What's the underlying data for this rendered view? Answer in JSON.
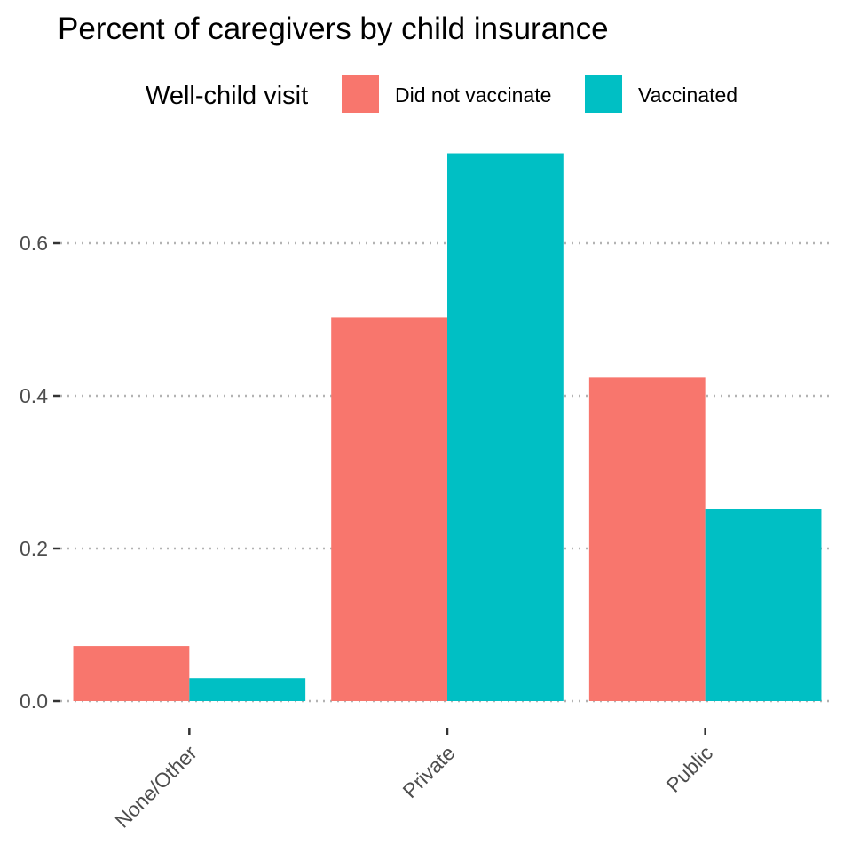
{
  "chart_data": {
    "type": "bar",
    "title": "Percent of caregivers by child insurance",
    "xlabel": "",
    "ylabel": "",
    "categories": [
      "None/Other",
      "Private",
      "Public"
    ],
    "series": [
      {
        "name": "Did not vaccinate",
        "color": "#F8766D",
        "values": [
          0.072,
          0.503,
          0.424
        ]
      },
      {
        "name": "Vaccinated",
        "color": "#00BFC4",
        "values": [
          0.03,
          0.718,
          0.252
        ]
      }
    ],
    "ylim": [
      0,
      0.75
    ],
    "yticks": [
      0.0,
      0.2,
      0.4,
      0.6
    ],
    "ytick_labels": [
      "0.0",
      "0.2",
      "0.4",
      "0.6"
    ],
    "grid": "major, dotted",
    "legend": {
      "title": "Well-child visit",
      "placement": "top"
    },
    "xtick_rotation": 45
  }
}
